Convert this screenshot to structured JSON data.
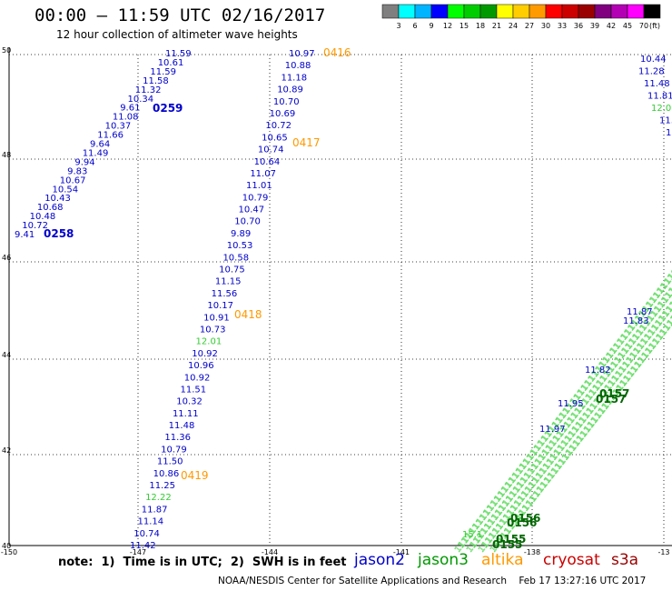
{
  "title": "00:00 – 11:59 UTC 02/16/2017",
  "subtitle": "12 hour collection of altimeter wave heights",
  "colorbar": {
    "colors": [
      "#7f7f7f",
      "#00ffff",
      "#00b4ff",
      "#0000ff",
      "#00ff00",
      "#00cd00",
      "#009a00",
      "#ffff00",
      "#ffcd00",
      "#ff9a00",
      "#ff0000",
      "#cd0000",
      "#9a0000",
      "#800080",
      "#b400b4",
      "#ff00ff",
      "#000000"
    ],
    "tick_labels": [
      "3",
      "6",
      "9",
      "12",
      "15",
      "18",
      "21",
      "24",
      "27",
      "30",
      "33",
      "36",
      "39",
      "42",
      "45",
      "70"
    ],
    "unit": "(ft)"
  },
  "axes": {
    "lon_labels": [
      "-150",
      "-147",
      "-144",
      "-141",
      "-138",
      "-13"
    ],
    "lat_labels": [
      "50",
      "48",
      "46",
      "44",
      "42",
      "40"
    ]
  },
  "tracks": {
    "track_0258": [
      {
        "text": "11.59",
        "c": "blue"
      },
      {
        "text": "10.61",
        "c": "blue"
      },
      {
        "text": "11.59",
        "c": "blue"
      },
      {
        "text": "11.58",
        "c": "blue"
      },
      {
        "text": "11.32",
        "c": "blue"
      },
      {
        "text": "10.34",
        "c": "blue"
      },
      {
        "text": "9.61",
        "c": "blue"
      },
      {
        "text": "11.08",
        "c": "blue"
      },
      {
        "text": "10.37",
        "c": "blue"
      },
      {
        "text": "11.66",
        "c": "blue"
      },
      {
        "text": "9.64",
        "c": "blue"
      },
      {
        "text": "11.49",
        "c": "blue"
      },
      {
        "text": "9.94",
        "c": "blue"
      },
      {
        "text": "9.83",
        "c": "blue"
      },
      {
        "text": "10.67",
        "c": "blue"
      },
      {
        "text": "10.54",
        "c": "blue"
      },
      {
        "text": "10.43",
        "c": "blue"
      },
      {
        "text": "10.68",
        "c": "blue"
      },
      {
        "text": "10.48",
        "c": "blue"
      },
      {
        "text": "10.72",
        "c": "blue"
      },
      {
        "text": "9.41",
        "c": "blue"
      }
    ],
    "track_0416": [
      {
        "text": "10.97",
        "c": "blue"
      },
      {
        "text": "10.88",
        "c": "blue"
      },
      {
        "text": "11.18",
        "c": "blue"
      },
      {
        "text": "10.89",
        "c": "blue"
      },
      {
        "text": "10.70",
        "c": "blue"
      },
      {
        "text": "10.69",
        "c": "blue"
      },
      {
        "text": "10.72",
        "c": "blue"
      },
      {
        "text": "10.65",
        "c": "blue"
      },
      {
        "text": "10.74",
        "c": "blue"
      },
      {
        "text": "10.64",
        "c": "blue"
      },
      {
        "text": "11.07",
        "c": "blue"
      },
      {
        "text": "11.01",
        "c": "blue"
      },
      {
        "text": "10.79",
        "c": "blue"
      },
      {
        "text": "10.47",
        "c": "blue"
      },
      {
        "text": "10.70",
        "c": "blue"
      },
      {
        "text": "9.89",
        "c": "blue"
      },
      {
        "text": "10.53",
        "c": "blue"
      },
      {
        "text": "10.58",
        "c": "blue"
      },
      {
        "text": "10.75",
        "c": "blue"
      },
      {
        "text": "11.15",
        "c": "blue"
      },
      {
        "text": "11.56",
        "c": "blue"
      },
      {
        "text": "10.17",
        "c": "blue"
      },
      {
        "text": "10.91",
        "c": "blue"
      },
      {
        "text": "10.73",
        "c": "blue"
      },
      {
        "text": "12.01",
        "c": "green"
      },
      {
        "text": "10.92",
        "c": "blue"
      },
      {
        "text": "10.96",
        "c": "blue"
      },
      {
        "text": "10.92",
        "c": "blue"
      },
      {
        "text": "11.51",
        "c": "blue"
      },
      {
        "text": "10.32",
        "c": "blue"
      },
      {
        "text": "11.11",
        "c": "blue"
      },
      {
        "text": "11.48",
        "c": "blue"
      },
      {
        "text": "11.36",
        "c": "blue"
      },
      {
        "text": "10.79",
        "c": "blue"
      },
      {
        "text": "11.50",
        "c": "blue"
      },
      {
        "text": "10.86",
        "c": "blue"
      },
      {
        "text": "11.25",
        "c": "blue"
      },
      {
        "text": "12.22",
        "c": "green"
      },
      {
        "text": "11.87",
        "c": "blue"
      },
      {
        "text": "11.14",
        "c": "blue"
      },
      {
        "text": "10.74",
        "c": "blue"
      },
      {
        "text": "11.42",
        "c": "blue"
      }
    ],
    "track_right": [
      {
        "text": "10.44",
        "c": "blue"
      },
      {
        "text": "11.28",
        "c": "blue"
      },
      {
        "text": "11.48",
        "c": "blue"
      },
      {
        "text": "11.81",
        "c": "blue"
      },
      {
        "text": "12.0",
        "c": "green"
      },
      {
        "text": "11.",
        "c": "blue"
      },
      {
        "text": "1",
        "c": "blue"
      }
    ],
    "track_diag_values": [
      {
        "text": "11.82",
        "c": "blue"
      },
      {
        "text": "11.95",
        "c": "blue"
      },
      {
        "text": "11.97",
        "c": "blue"
      },
      {
        "text": "11.87",
        "c": "blue"
      },
      {
        "text": "11.83",
        "c": "blue"
      },
      {
        "text": "15.1",
        "c": "green"
      }
    ]
  },
  "time_labels": {
    "orange": [
      "0416",
      "0417",
      "0418",
      "0419"
    ],
    "blue": [
      "0259",
      "0258"
    ],
    "green": [
      "0157",
      "0157",
      "0156",
      "0156",
      "0155",
      "0155"
    ]
  },
  "note": "note:  1)  Time is in UTC;  2)  SWH is in feet",
  "legend": [
    {
      "name": "jason2",
      "color": "#0000cc"
    },
    {
      "name": "jason3",
      "color": "#009900"
    },
    {
      "name": "altika",
      "color": "#ff9900"
    },
    {
      "name": "cryosat",
      "color": "#cc0000"
    },
    {
      "name": "s3a",
      "color": "#990000"
    }
  ],
  "footer": "NOAA/NESDIS Center for Satellite Applications and Research    Feb 17 13:27:16 UTC 2017"
}
